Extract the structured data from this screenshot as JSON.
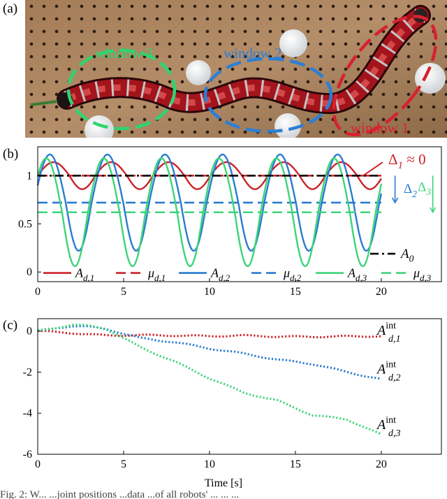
{
  "panels": {
    "a": "(a)",
    "b": "(b)",
    "c": "(c)"
  },
  "photo": {
    "windows": [
      {
        "label": "window 3",
        "color": "#2fd470"
      },
      {
        "label": "window 2",
        "color": "#2b7fd4"
      },
      {
        "label": "window 1",
        "color": "#d8212f"
      }
    ]
  },
  "colors": {
    "red": "#cc2229",
    "blue": "#2a7bd1",
    "green": "#3dd479",
    "black": "#000000"
  },
  "chart_data": [
    {
      "type": "line",
      "panel": "b",
      "xlim": [
        0,
        23.5
      ],
      "ylim": [
        -0.1,
        1.3
      ],
      "xticks": [
        0,
        5,
        10,
        15,
        20
      ],
      "yticks": [
        0,
        0.5,
        1
      ],
      "ytick_labels": [
        "0",
        "0.5",
        "1"
      ],
      "grid": false,
      "legend_position": "bottom",
      "series": [
        {
          "name": "A_{d,1}",
          "color": "#cc2229",
          "style": "solid",
          "base": 1.0,
          "amp": 0.14,
          "period": 3.35,
          "phase": 0.0
        },
        {
          "name": "μ_{d,1}",
          "color": "#cc2229",
          "style": "dashed",
          "value": 1.0
        },
        {
          "name": "A_{d,2}",
          "color": "#2a7bd1",
          "style": "solid",
          "base": 0.72,
          "amp": 0.5,
          "period": 3.35,
          "phase": 0.4
        },
        {
          "name": "μ_{d,2}",
          "color": "#2a7bd1",
          "style": "dashed",
          "value": 0.72
        },
        {
          "name": "A_{d,3}",
          "color": "#3dd479",
          "style": "solid",
          "base": 0.62,
          "amp": 0.56,
          "period": 3.35,
          "phase": 0.8
        },
        {
          "name": "μ_{d,3}",
          "color": "#3dd479",
          "style": "dashed",
          "value": 0.62
        },
        {
          "name": "A_0",
          "color": "#000000",
          "style": "dashdot",
          "value": 1.0
        }
      ],
      "annotations": [
        {
          "text": "Δ_1 ≈ 0",
          "color": "#cc2229"
        },
        {
          "text": "Δ_2",
          "color": "#2a7bd1"
        },
        {
          "text": "Δ_3",
          "color": "#3dd479"
        }
      ]
    },
    {
      "type": "line",
      "panel": "c",
      "xlim": [
        0,
        23.5
      ],
      "ylim": [
        -6,
        0.6
      ],
      "xticks": [
        0,
        5,
        10,
        15,
        20
      ],
      "yticks": [
        0,
        -2,
        -4,
        -6
      ],
      "xlabel": "Time [s]",
      "grid": false,
      "series": [
        {
          "name": "A^int_{d,1}",
          "color": "#cc2229",
          "style": "dotted",
          "x": [
            0,
            2,
            4,
            6,
            8,
            10,
            12,
            14,
            16,
            18,
            20
          ],
          "y": [
            0,
            -0.1,
            -0.22,
            -0.2,
            -0.22,
            -0.25,
            -0.22,
            -0.27,
            -0.28,
            -0.26,
            -0.25
          ]
        },
        {
          "name": "A^int_{d,2}",
          "color": "#2a7bd1",
          "style": "dotted",
          "x": [
            0,
            2,
            3,
            4,
            6,
            8,
            10,
            12,
            14,
            16,
            18,
            20
          ],
          "y": [
            0,
            0.25,
            0.2,
            0.1,
            -0.35,
            -0.55,
            -0.85,
            -1.1,
            -1.4,
            -1.6,
            -2.0,
            -2.35
          ]
        },
        {
          "name": "A^int_{d,3}",
          "color": "#3dd479",
          "style": "dotted",
          "x": [
            0,
            2,
            3,
            4,
            6,
            8,
            10,
            12,
            14,
            16,
            18,
            20
          ],
          "y": [
            0,
            0.3,
            0.25,
            0.1,
            -0.8,
            -1.5,
            -2.3,
            -3.0,
            -3.4,
            -4.1,
            -4.3,
            -5.05
          ]
        }
      ]
    }
  ],
  "caption": "Fig. 2: W... ...joint positions ...data ...of all robots' ... ... ..."
}
